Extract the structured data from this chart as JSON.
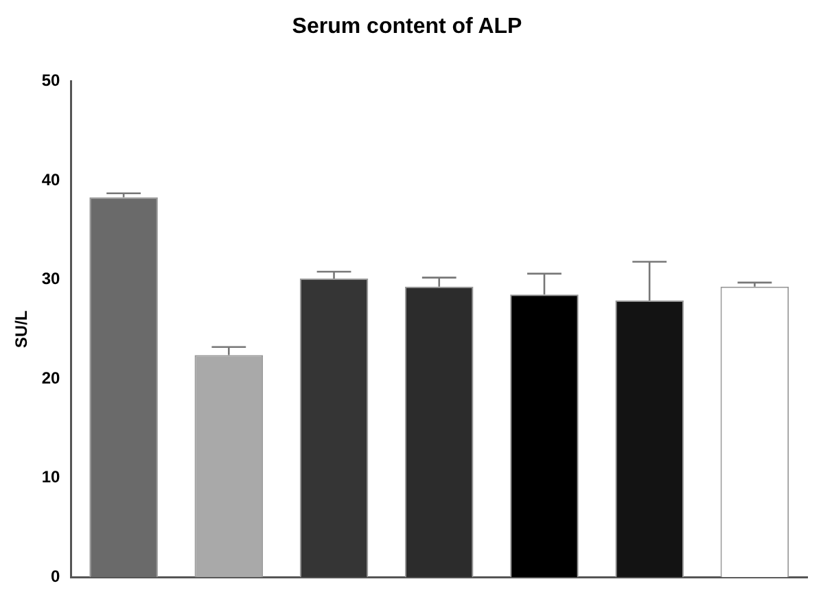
{
  "chart_data": {
    "type": "bar",
    "title": "Serum content of ALP",
    "ylabel": "SU/L",
    "categories": [
      null,
      null,
      null,
      null,
      null,
      null,
      null
    ],
    "values": [
      38.3,
      22.4,
      30.1,
      29.3,
      28.5,
      27.9,
      29.3
    ],
    "errors": [
      [
        38.3,
        38.7
      ],
      [
        22.4,
        23.2
      ],
      [
        30.1,
        30.8
      ],
      [
        29.3,
        30.2
      ],
      [
        28.5,
        30.6
      ],
      [
        27.9,
        31.8
      ],
      [
        29.3,
        29.7
      ]
    ],
    "colors": [
      "#6a6a6a",
      "#a9a9a9",
      "#353535",
      "#2c2c2c",
      "#000000",
      "#131313",
      "#ffffff"
    ],
    "ylim": [
      0,
      50
    ],
    "yticks": [
      0,
      10,
      20,
      30,
      40,
      50
    ],
    "grid": false,
    "legend": false
  }
}
